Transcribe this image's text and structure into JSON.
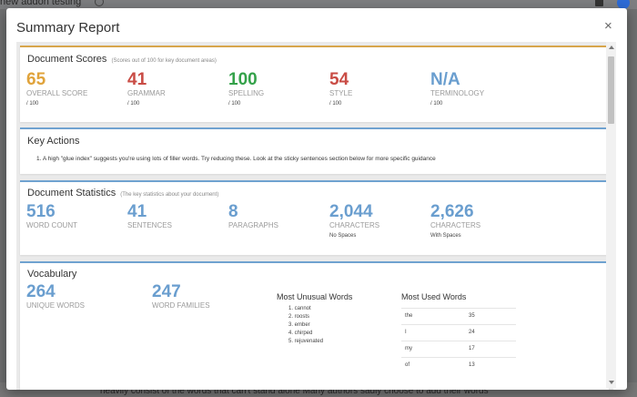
{
  "background": {
    "doc_title": "new addon testing",
    "bottom_text": "heavily consist of the words that can't stand alone Many authors sadly choose to add their words"
  },
  "modal": {
    "title": "Summary Report",
    "close_label": "×"
  },
  "scores": {
    "title": "Document Scores",
    "subtitle": "(Scores out of 100 for key document areas)",
    "items": [
      {
        "value": "65",
        "label": "OVERALL SCORE",
        "sub": "/ 100"
      },
      {
        "value": "41",
        "label": "GRAMMAR",
        "sub": "/ 100"
      },
      {
        "value": "100",
        "label": "SPELLING",
        "sub": "/ 100"
      },
      {
        "value": "54",
        "label": "STYLE",
        "sub": "/ 100"
      },
      {
        "value": "N/A",
        "label": "TERMINOLOGY",
        "sub": "/ 100"
      }
    ],
    "colors": {
      "orange": "#e0a33b",
      "red": "#c94c45",
      "green": "#34a24a",
      "blue": "#6a9ecf"
    }
  },
  "actions": {
    "title": "Key Actions",
    "items": [
      "1. A high \"glue index\" suggests you're using lots of filler words. Try reducing these. Look at the sticky sentences section below for more specific guidance"
    ]
  },
  "stats": {
    "title": "Document Statistics",
    "subtitle": "(The key statistics about your document)",
    "items": [
      {
        "value": "516",
        "label": "WORD COUNT",
        "sub": ""
      },
      {
        "value": "41",
        "label": "SENTENCES",
        "sub": ""
      },
      {
        "value": "8",
        "label": "PARAGRAPHS",
        "sub": ""
      },
      {
        "value": "2,044",
        "label": "CHARACTERS",
        "sub": "No Spaces"
      },
      {
        "value": "2,626",
        "label": "CHARACTERS",
        "sub": "With Spaces"
      }
    ]
  },
  "vocabulary": {
    "title": "Vocabulary",
    "items": [
      {
        "value": "264",
        "label": "UNIQUE WORDS"
      },
      {
        "value": "247",
        "label": "WORD FAMILIES"
      }
    ],
    "unusual_title": "Most Unusual Words",
    "unusual": [
      "1. cannot",
      "2. roosts",
      "3. ember",
      "4. chirped",
      "5. rejuvenated"
    ],
    "used_title": "Most Used Words",
    "used": [
      {
        "word": "the",
        "count": "35"
      },
      {
        "word": "I",
        "count": "24"
      },
      {
        "word": "my",
        "count": "17"
      },
      {
        "word": "of",
        "count": "13"
      }
    ]
  }
}
